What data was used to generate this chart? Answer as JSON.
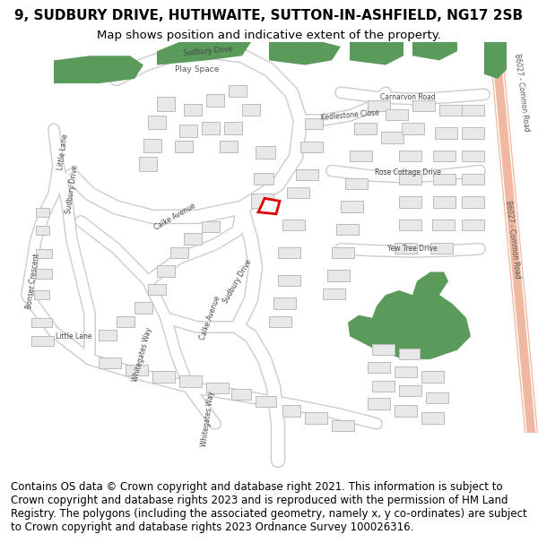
{
  "title_line1": "9, SUDBURY DRIVE, HUTHWAITE, SUTTON-IN-ASHFIELD, NG17 2SB",
  "title_line2": "Map shows position and indicative extent of the property.",
  "footer_text": "Contains OS data © Crown copyright and database right 2021. This information is subject to Crown copyright and database rights 2023 and is reproduced with the permission of HM Land Registry. The polygons (including the associated geometry, namely x, y co-ordinates) are subject to Crown copyright and database rights 2023 Ordnance Survey 100026316.",
  "map_bg": "#f5f5f5",
  "road_color": "#ffffff",
  "road_outline": "#cccccc",
  "building_fill": "#e8e8e8",
  "building_outline": "#bbbbbb",
  "green_fill": "#5a9a5a",
  "highlight_fill": "#ffffff",
  "highlight_outline": "#dd0000",
  "b6027_fill": "#f0b8a0",
  "title_fontsize": 11,
  "footer_fontsize": 8.5
}
